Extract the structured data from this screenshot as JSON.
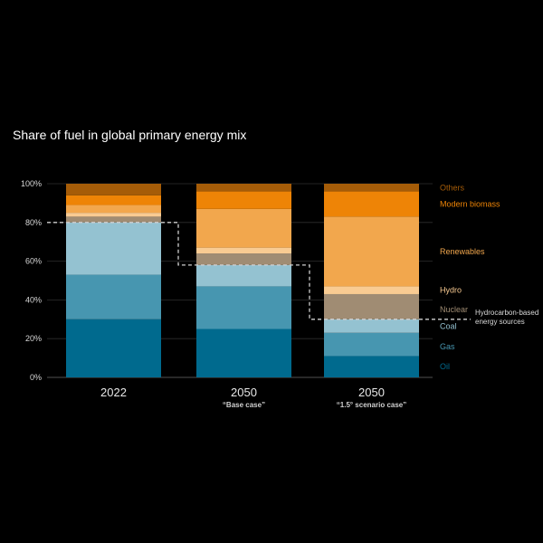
{
  "chart_data": {
    "type": "bar",
    "stacked": true,
    "title": "Share of fuel in global primary energy mix",
    "categories": [
      "2022",
      "2050",
      "2050"
    ],
    "category_subtitles": [
      "",
      "“Base case”",
      "“1.5° scenario case”"
    ],
    "ylim": [
      0,
      100
    ],
    "yticks": [
      "0%",
      "20%",
      "40%",
      "60%",
      "80%",
      "100%"
    ],
    "legend_placement": "right",
    "series": [
      {
        "name": "Oil",
        "color": "#006a8e",
        "values": [
          30,
          25,
          11
        ]
      },
      {
        "name": "Gas",
        "color": "#4796b0",
        "values": [
          23,
          22,
          12
        ]
      },
      {
        "name": "Coal",
        "color": "#94c2d1",
        "values": [
          27,
          11,
          7
        ]
      },
      {
        "name": "Nuclear",
        "color": "#a08c73",
        "values": [
          3,
          6,
          13
        ]
      },
      {
        "name": "Hydro",
        "color": "#f9cb92",
        "values": [
          2,
          3,
          4
        ]
      },
      {
        "name": "Renewables",
        "color": "#f2a74d",
        "values": [
          4,
          20,
          36
        ]
      },
      {
        "name": "Modern biomass",
        "color": "#ee8406",
        "values": [
          5,
          9,
          13
        ]
      },
      {
        "name": "Others",
        "color": "#a55c08",
        "values": [
          6,
          4,
          4
        ]
      }
    ],
    "annotation": {
      "label_lines": [
        "Hydrocarbon-based",
        "energy sources"
      ],
      "levels": [
        80,
        58,
        30
      ]
    }
  }
}
